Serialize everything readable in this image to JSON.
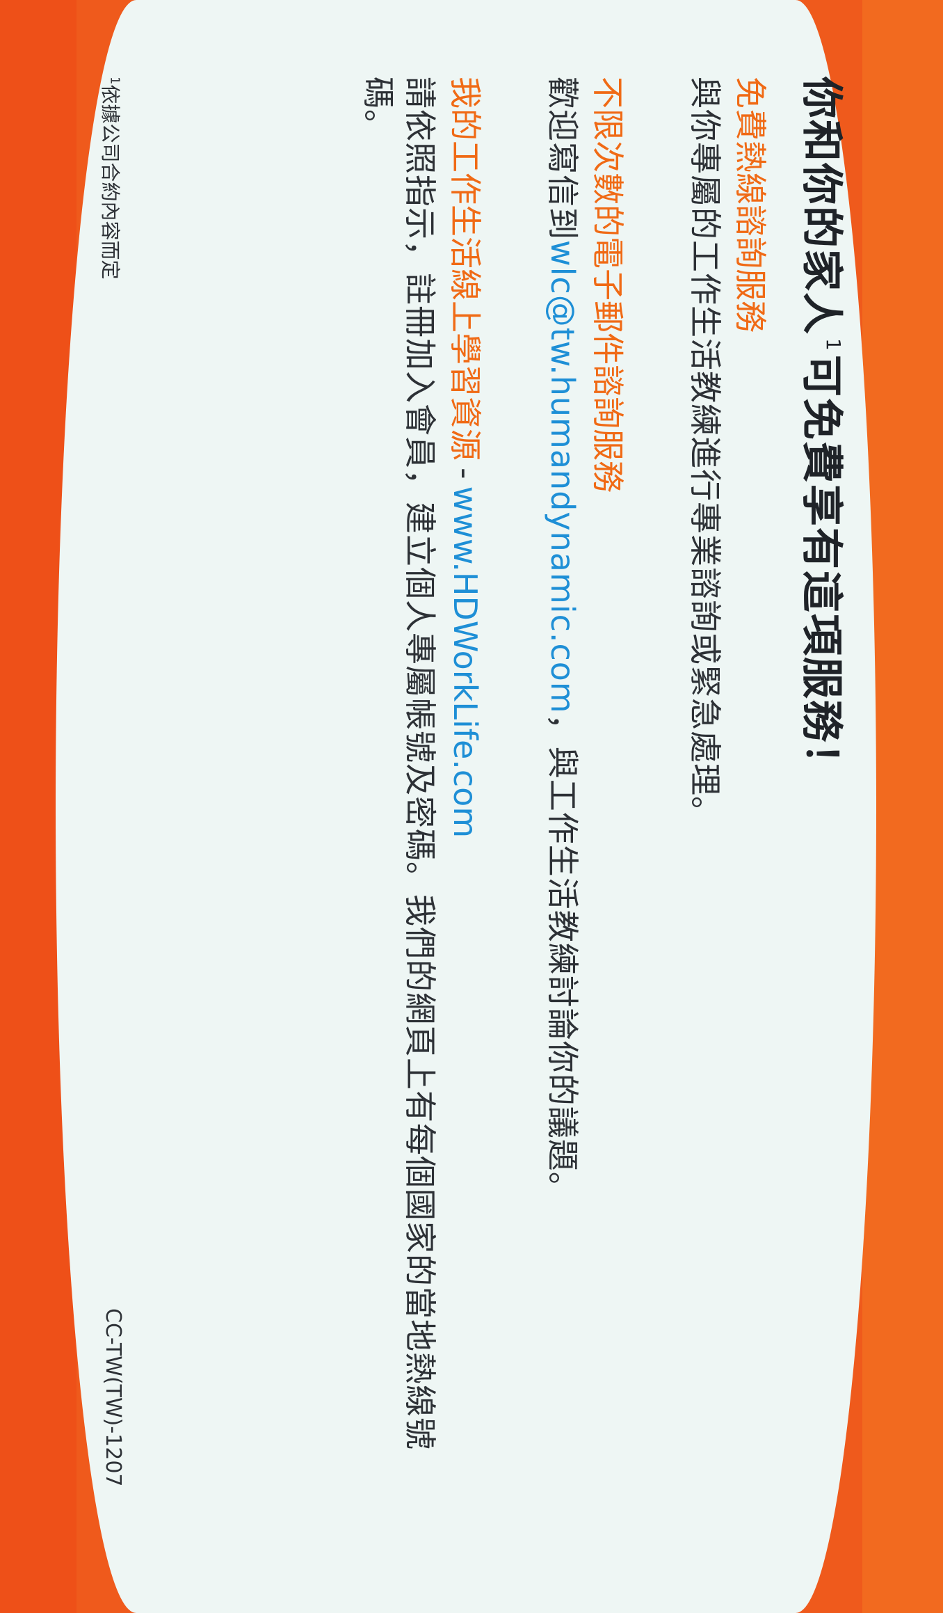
{
  "title": {
    "before": "你和你的家人",
    "superscript": "1",
    "after": "可免費享有這項服務！"
  },
  "hotline": {
    "heading": "免費熱線諮詢服務",
    "body": "與你專屬的工作生活教練進行專業諮詢或緊急處理。"
  },
  "email": {
    "heading": "不限次數的電子郵件諮詢服務",
    "prefix": "歡迎寫信到",
    "address": "wlc@tw.humandynamic.com",
    "suffix": "，與工作生活教練討論你的議題。"
  },
  "online": {
    "heading": "我的工作生活線上學習資源",
    "dash": "-",
    "url": "www.HDWorkLife.com",
    "body_line1": "請依照指示，註冊加入會員，建立個人專屬帳號及密碼。我們的網頁上有每個國家的當地熱線號",
    "body_line2": "碼。"
  },
  "footnote": {
    "marker": "1",
    "text": "依據公司合約內容而定"
  },
  "code": "CC-TW(TW)-1207",
  "colors": {
    "orange_border": "#ee5018",
    "card_background": "#eef6f4",
    "heading_orange": "#f06a15",
    "link_blue": "#1e8fd6",
    "text_dark": "#2d3136"
  }
}
